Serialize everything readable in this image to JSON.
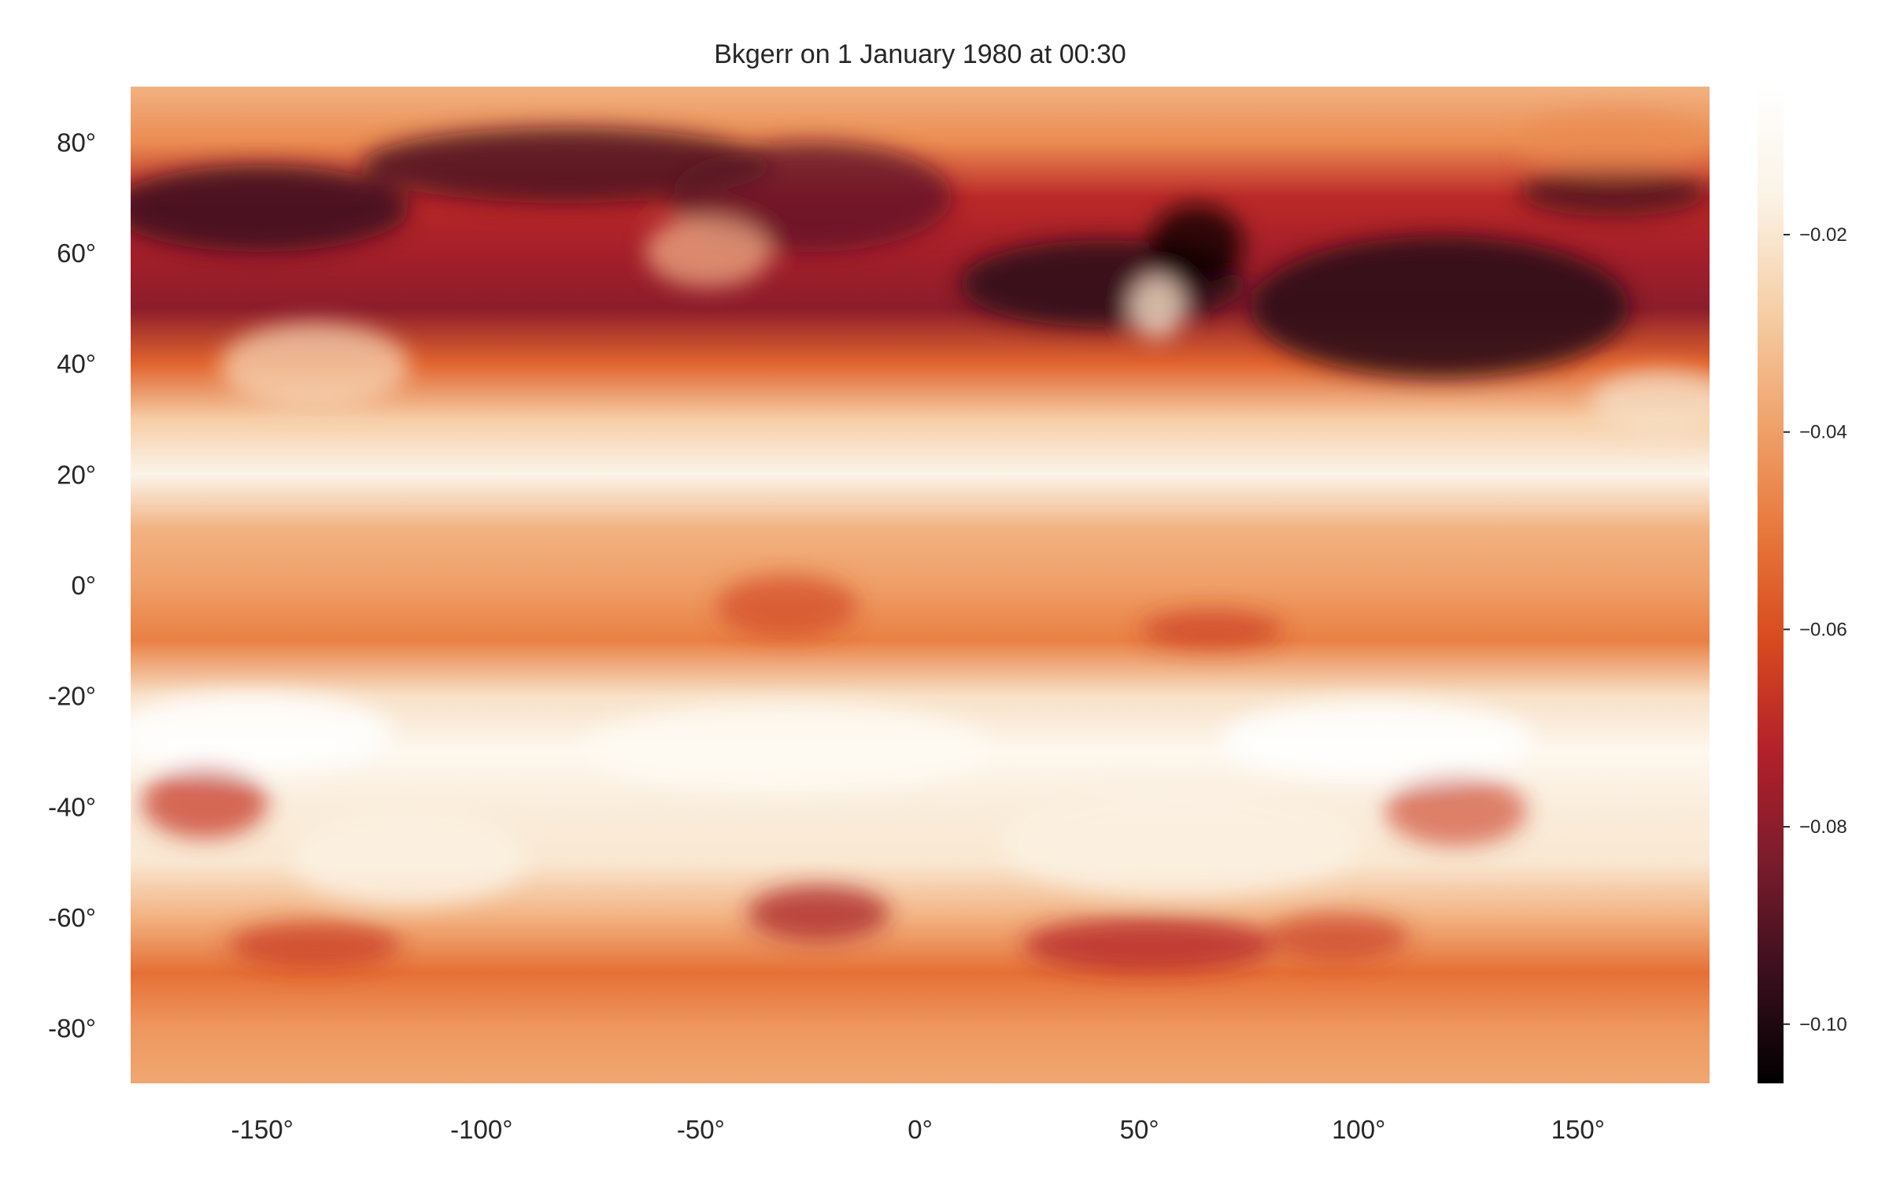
{
  "chart_data": {
    "type": "heatmap",
    "title": "Bkgerr on 1 January 1980 at 00:30",
    "xlabel": "",
    "ylabel": "",
    "xlim": [
      -180,
      180
    ],
    "ylim": [
      -90,
      90
    ],
    "x_ticks": [
      -150,
      -100,
      -50,
      0,
      50,
      100,
      150
    ],
    "x_tick_labels": [
      "-150°",
      "-100°",
      "-50°",
      "0°",
      "50°",
      "100°",
      "150°"
    ],
    "y_ticks": [
      80,
      60,
      40,
      20,
      0,
      -20,
      -40,
      -60,
      -80
    ],
    "y_tick_labels": [
      "80°",
      "60°",
      "40°",
      "20°",
      "0°",
      "-20°",
      "-40°",
      "-60°",
      "-80°"
    ],
    "grid": false,
    "colorbar": {
      "range": [
        -0.106,
        -0.005
      ],
      "ticks": [
        -0.02,
        -0.04,
        -0.06,
        -0.08,
        -0.1
      ],
      "tick_labels": [
        "−0.02",
        "−0.04",
        "−0.06",
        "−0.08",
        "−0.10"
      ],
      "colormap": [
        "#000000",
        "#3a0f1e",
        "#7a1c2c",
        "#b3202a",
        "#d84a1e",
        "#e8793c",
        "#f0a46e",
        "#f6cfa8",
        "#fbf3e6",
        "#ffffff"
      ]
    },
    "zonal_pattern": {
      "description_units": "approximate field value by latitude band",
      "latitudes": [
        -90,
        -80,
        -70,
        -60,
        -50,
        -40,
        -30,
        -20,
        -10,
        0,
        10,
        20,
        30,
        40,
        50,
        60,
        70,
        80,
        90
      ],
      "values": [
        -0.038,
        -0.042,
        -0.052,
        -0.035,
        -0.02,
        -0.018,
        -0.012,
        -0.022,
        -0.048,
        -0.04,
        -0.035,
        -0.015,
        -0.028,
        -0.055,
        -0.08,
        -0.075,
        -0.07,
        -0.045,
        -0.035
      ]
    }
  }
}
